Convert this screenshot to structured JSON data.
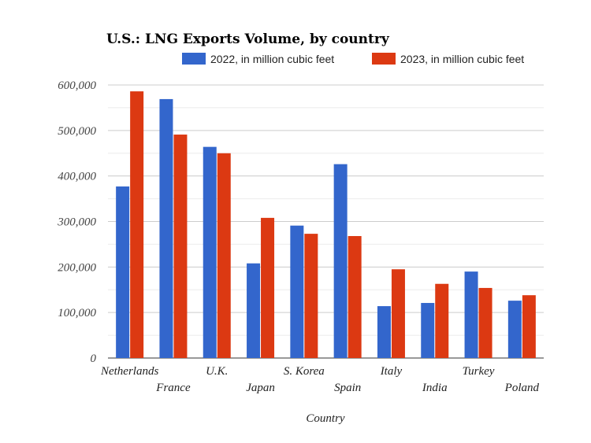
{
  "chart_data": {
    "type": "bar",
    "title": "U.S.: LNG Exports Volume, by country",
    "xlabel": "Country",
    "ylabel": "",
    "ylim": [
      0,
      600000
    ],
    "yticks": [
      0,
      100000,
      200000,
      300000,
      400000,
      500000,
      600000
    ],
    "ytick_labels": [
      "0",
      "100,000",
      "200,000",
      "300,000",
      "400,000",
      "500,000",
      "600,000"
    ],
    "grid": true,
    "legend_position": "top-right",
    "categories": [
      "Netherlands",
      "France",
      "U.K.",
      "Japan",
      "S. Korea",
      "Spain",
      "Italy",
      "India",
      "Turkey",
      "Poland"
    ],
    "series": [
      {
        "name": "2022, in million cubic feet",
        "color": "#3366cc",
        "values": [
          377000,
          569000,
          464000,
          208000,
          291000,
          426000,
          114000,
          121000,
          190000,
          126000
        ]
      },
      {
        "name": "2023, in million cubic feet",
        "color": "#dc3912",
        "values": [
          586000,
          491000,
          450000,
          308000,
          273000,
          268000,
          195000,
          163000,
          154000,
          138000
        ]
      }
    ]
  }
}
